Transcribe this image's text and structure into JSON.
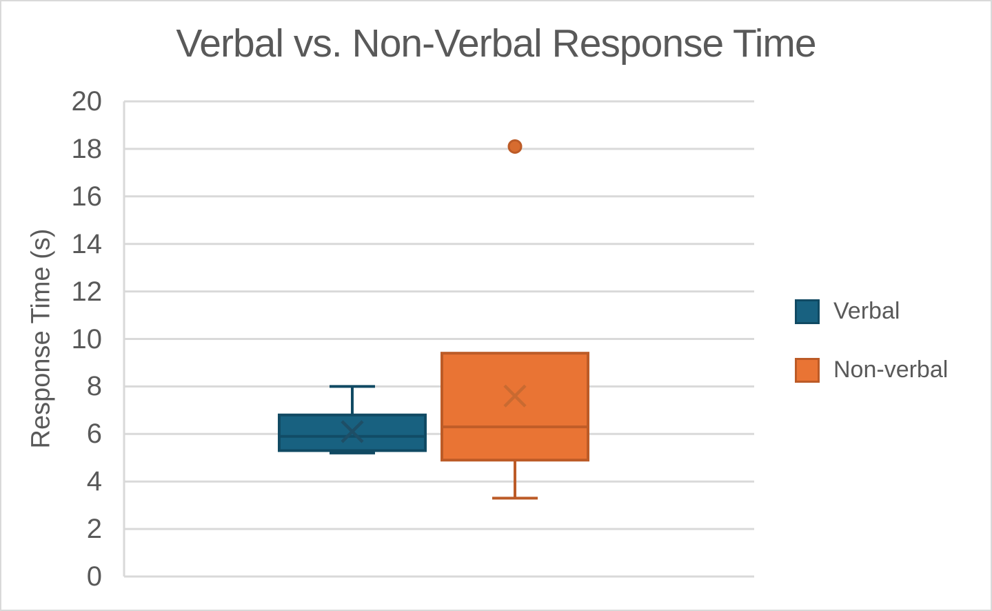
{
  "title": "Verbal vs. Non-Verbal Response Time",
  "chart_data": {
    "type": "boxplot",
    "title": "Verbal vs. Non-Verbal Response Time",
    "ylabel": "Response Time (s)",
    "ylim": [
      0,
      20
    ],
    "ytick_step": 2,
    "yticks": [
      0,
      2,
      4,
      6,
      8,
      10,
      12,
      14,
      16,
      18,
      20
    ],
    "grid": "horizontal",
    "legend_position": "right",
    "series": [
      {
        "name": "Verbal",
        "min": 5.2,
        "q1": 5.3,
        "median": 5.9,
        "q3": 6.8,
        "max": 8.0,
        "mean": 6.1,
        "outliers": [],
        "fill": "#186180",
        "stroke": "#114A63",
        "mean_color": "#1E4E66"
      },
      {
        "name": "Non-verbal",
        "min": 3.3,
        "q1": 4.9,
        "median": 6.3,
        "q3": 9.4,
        "max": 9.4,
        "mean": 7.6,
        "outliers": [
          18.1
        ],
        "fill": "#E97434",
        "stroke": "#BC5B27",
        "mean_color": "#C96A31",
        "outlier_fill": "#D76C2F"
      }
    ]
  },
  "colors": {
    "gridline": "#D9D9D9",
    "axis_text": "#595959",
    "title_text": "#595959",
    "background": "#FFFFFF",
    "frame_border": "#D9D9D9"
  }
}
